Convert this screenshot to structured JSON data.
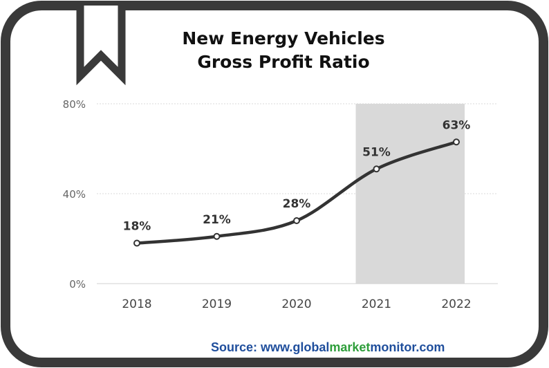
{
  "chart_data": {
    "type": "line",
    "title_lines": [
      "New Energy Vehicles",
      "Gross Profit Ratio"
    ],
    "categories": [
      "2018",
      "2019",
      "2020",
      "2021",
      "2022"
    ],
    "values": [
      18,
      21,
      28,
      51,
      63
    ],
    "value_labels": [
      "18%",
      "21%",
      "28%",
      "51%",
      "63%"
    ],
    "yticks": [
      "0%",
      "40%",
      "80%"
    ],
    "ytick_values": [
      0,
      40,
      80
    ],
    "ylim": [
      0,
      80
    ],
    "highlight_categories": [
      "2021",
      "2022"
    ],
    "grid": true,
    "colors": {
      "line": "#333333",
      "highlight": "#d9d9d9",
      "frame": "#3a3a3a",
      "grid": "#d9d9d9"
    }
  },
  "source": {
    "prefix": "Source: www.",
    "part_global": "global",
    "part_market": "market",
    "part_monitor": "monitor",
    "suffix": ".com",
    "colors": {
      "blue": "#1f4e9c",
      "green": "#2e9e3a"
    }
  }
}
